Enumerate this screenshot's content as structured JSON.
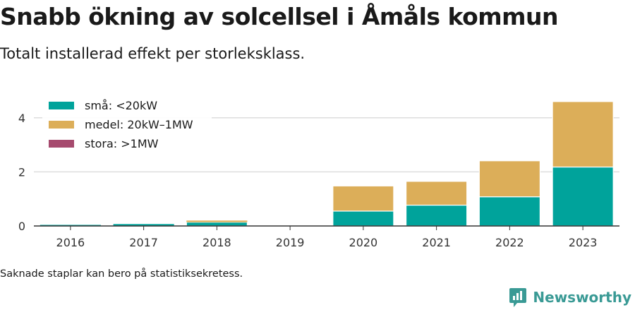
{
  "header": {
    "title": "Snabb ökning av solcellsel i Åmåls kommun",
    "subtitle": "Totalt installerad effekt per storleksklass."
  },
  "footer": {
    "note": "Saknade staplar kan bero på statistiksekretess.",
    "brand": "Newsworthy"
  },
  "colors": {
    "small": "#00a39b",
    "medium": "#dcae59",
    "large": "#a64a6e",
    "grid": "#dddddd",
    "axis": "#333333",
    "brand": "#3a9a95"
  },
  "chart_data": {
    "type": "bar",
    "stacked": true,
    "categories": [
      "2016",
      "2017",
      "2018",
      "2019",
      "2020",
      "2021",
      "2022",
      "2023"
    ],
    "series": [
      {
        "name": "små: <20kW",
        "color": "#00a39b",
        "values": [
          0.04,
          0.07,
          0.14,
          0,
          0.55,
          0.77,
          1.08,
          2.18
        ]
      },
      {
        "name": "medel: 20kW–1MW",
        "color": "#dcae59",
        "values": [
          0,
          0,
          0.06,
          0,
          0.93,
          0.88,
          1.33,
          2.42
        ]
      },
      {
        "name": "stora: >1MW",
        "color": "#a64a6e",
        "values": [
          0,
          0,
          0,
          0,
          0,
          0,
          0,
          0
        ]
      }
    ],
    "yticks": [
      0,
      2,
      4
    ],
    "ylim": [
      0,
      4.7
    ],
    "grid": true,
    "legend_position": "top-left"
  }
}
